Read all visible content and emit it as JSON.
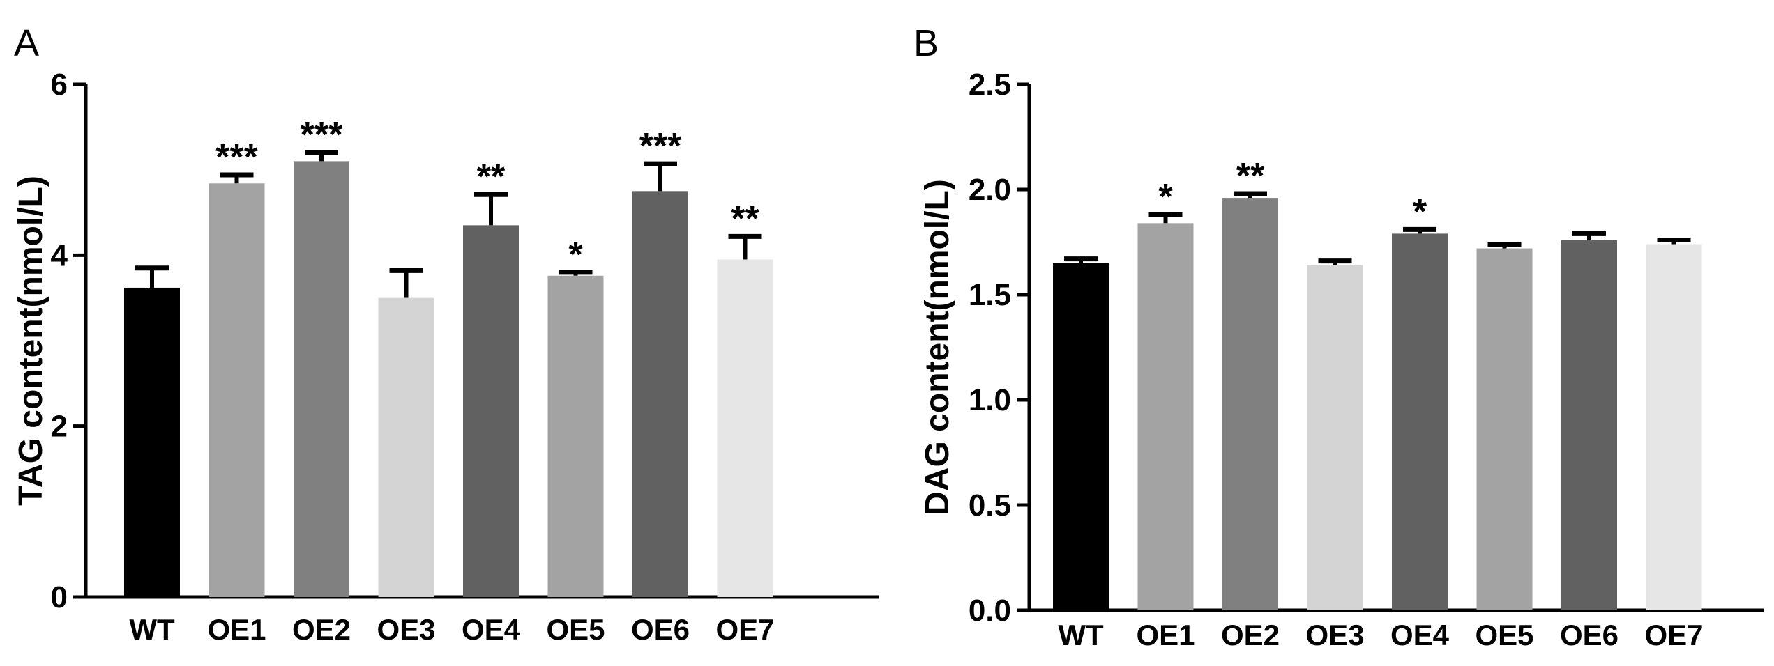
{
  "chart_data": [
    {
      "type": "bar",
      "panel_label": "A",
      "title": "",
      "xlabel": "",
      "ylabel": "TAG content(nmol/L)",
      "ylim": [
        0,
        6
      ],
      "yticks": [
        "0",
        "2",
        "4",
        "6"
      ],
      "categories": [
        "WT",
        "OE1",
        "OE2",
        "OE3",
        "OE4",
        "OE5",
        "OE6",
        "OE7"
      ],
      "values": [
        3.62,
        4.84,
        5.1,
        3.5,
        4.35,
        3.76,
        4.75,
        3.95
      ],
      "error": [
        0.23,
        0.1,
        0.1,
        0.32,
        0.36,
        0.04,
        0.32,
        0.27
      ],
      "significance": [
        "",
        "***",
        "***",
        "",
        "**",
        "*",
        "***",
        "**"
      ],
      "colors": [
        "#000000",
        "#a3a3a3",
        "#808080",
        "#d4d4d4",
        "#616161",
        "#a3a3a3",
        "#616161",
        "#e6e6e6"
      ],
      "grid": false,
      "legend": "none"
    },
    {
      "type": "bar",
      "panel_label": "B",
      "title": "",
      "xlabel": "",
      "ylabel": "DAG content(nmol/L)",
      "ylim": [
        0,
        2.5
      ],
      "yticks": [
        "0.0",
        "0.5",
        "1.0",
        "1.5",
        "2.0",
        "2.5"
      ],
      "categories": [
        "WT",
        "OE1",
        "OE2",
        "OE3",
        "OE4",
        "OE5",
        "OE6",
        "OE7"
      ],
      "values": [
        1.65,
        1.84,
        1.96,
        1.64,
        1.79,
        1.72,
        1.76,
        1.74
      ],
      "error": [
        0.02,
        0.04,
        0.02,
        0.02,
        0.02,
        0.02,
        0.03,
        0.02
      ],
      "significance": [
        "",
        "*",
        "**",
        "",
        "*",
        "",
        "",
        ""
      ],
      "colors": [
        "#000000",
        "#a3a3a3",
        "#808080",
        "#d4d4d4",
        "#616161",
        "#a3a3a3",
        "#616161",
        "#e6e6e6"
      ],
      "grid": false,
      "legend": "none"
    }
  ]
}
